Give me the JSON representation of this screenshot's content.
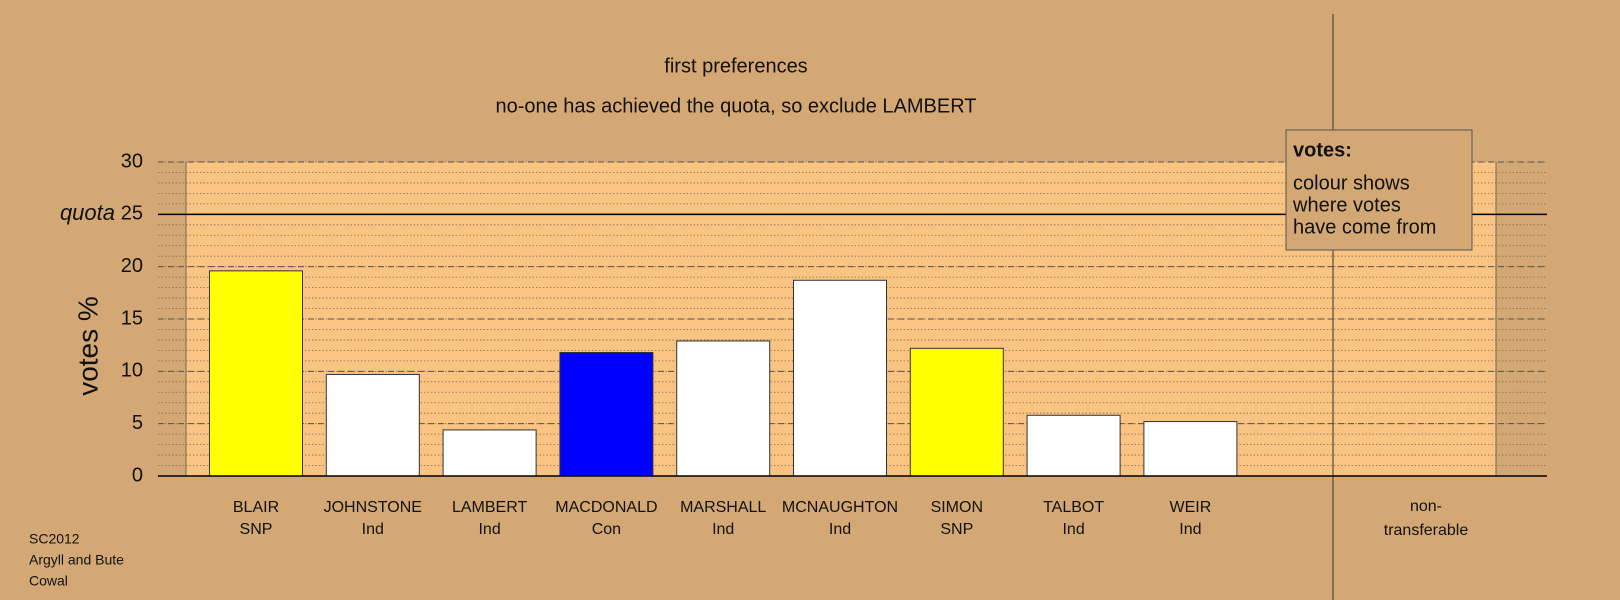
{
  "chart_data": {
    "type": "bar",
    "title": "first preferences",
    "subtitle": "no-one has achieved the quota, so exclude LAMBERT",
    "ylabel": "votes %",
    "categories": [
      "BLAIR",
      "JOHNSTONE",
      "LAMBERT",
      "MACDONALD",
      "MARSHALL",
      "MCNAUGHTON",
      "SIMON",
      "TALBOT",
      "WEIR"
    ],
    "parties": [
      "SNP",
      "Ind",
      "Ind",
      "Con",
      "Ind",
      "Ind",
      "SNP",
      "Ind",
      "Ind"
    ],
    "values": [
      19.6,
      9.7,
      4.4,
      11.8,
      12.9,
      18.7,
      12.2,
      5.8,
      5.2
    ],
    "colors": [
      "#ffff00",
      "#ffffff",
      "#ffffff",
      "#0000ff",
      "#ffffff",
      "#ffffff",
      "#ffff00",
      "#ffffff",
      "#ffffff"
    ],
    "non_transferable_label": [
      "non-",
      "transferable"
    ],
    "ylim": [
      0,
      30
    ],
    "yticks": [
      0,
      5,
      10,
      15,
      20,
      25,
      30
    ],
    "minor_grid_step": 1,
    "grid": true,
    "quota": {
      "label": "quota",
      "value": 25
    },
    "legend": {
      "title": "votes:",
      "lines": [
        "colour shows",
        "where votes",
        "have come from"
      ]
    },
    "footer": [
      "SC2012",
      "Argyll and Bute",
      "Cowal"
    ]
  }
}
